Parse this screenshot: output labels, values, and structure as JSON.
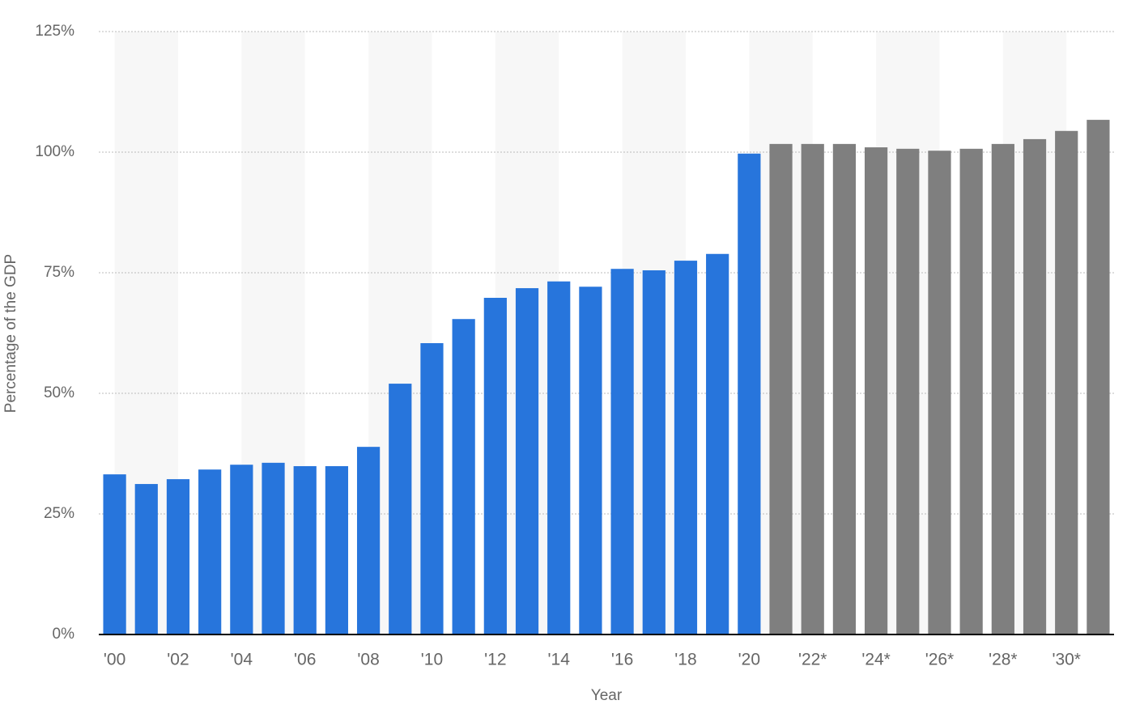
{
  "chart_data": {
    "type": "bar",
    "x_label": "Year",
    "y_label": "Percentage of the GDP",
    "categories": [
      "'00",
      null,
      "'02",
      null,
      "'04",
      null,
      "'06",
      null,
      "'08",
      null,
      "'10",
      null,
      "'12",
      null,
      "'14",
      null,
      "'16",
      null,
      "'18",
      null,
      "'20",
      null,
      "'22*",
      null,
      "'24*",
      null,
      "'26*",
      null,
      "'28*",
      null,
      "'30*",
      null
    ],
    "values": [
      33.2,
      31.2,
      32.2,
      34.2,
      35.2,
      35.6,
      34.9,
      34.9,
      38.9,
      52.0,
      60.4,
      65.4,
      69.8,
      71.8,
      73.2,
      72.1,
      75.8,
      75.5,
      77.5,
      78.9,
      99.7,
      101.7,
      101.7,
      101.7,
      101.0,
      100.7,
      100.3,
      100.7,
      101.7,
      102.7,
      104.4,
      106.7
    ],
    "colors": [
      "#2775dc",
      "#2775dc",
      "#2775dc",
      "#2775dc",
      "#2775dc",
      "#2775dc",
      "#2775dc",
      "#2775dc",
      "#2775dc",
      "#2775dc",
      "#2775dc",
      "#2775dc",
      "#2775dc",
      "#2775dc",
      "#2775dc",
      "#2775dc",
      "#2775dc",
      "#2775dc",
      "#2775dc",
      "#2775dc",
      "#2775dc",
      "#7f7f7f",
      "#7f7f7f",
      "#7f7f7f",
      "#7f7f7f",
      "#7f7f7f",
      "#7f7f7f",
      "#7f7f7f",
      "#7f7f7f",
      "#7f7f7f",
      "#7f7f7f",
      "#7f7f7f"
    ],
    "ylim": [
      0,
      125
    ],
    "yticks": [
      {
        "value": 0,
        "label": "0%"
      },
      {
        "value": 25,
        "label": "25%"
      },
      {
        "value": 50,
        "label": "50%"
      },
      {
        "value": 75,
        "label": "75%"
      },
      {
        "value": 100,
        "label": "100%"
      },
      {
        "value": 125,
        "label": "125%"
      }
    ],
    "grid": true
  }
}
